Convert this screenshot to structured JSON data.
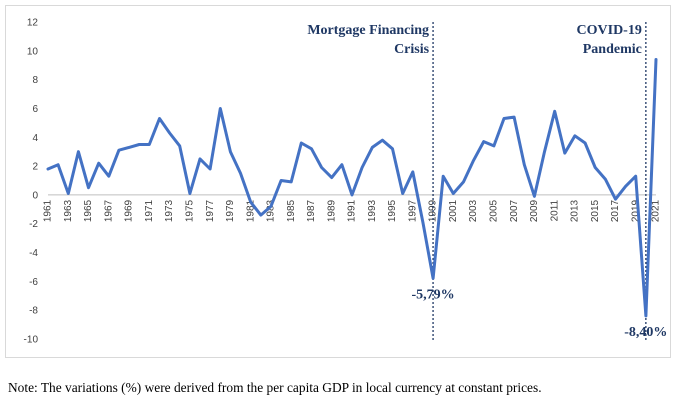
{
  "chart_data": {
    "type": "line",
    "x": [
      1961,
      1962,
      1963,
      1964,
      1965,
      1966,
      1967,
      1968,
      1969,
      1970,
      1971,
      1972,
      1973,
      1974,
      1975,
      1976,
      1977,
      1978,
      1979,
      1980,
      1981,
      1982,
      1983,
      1984,
      1985,
      1986,
      1987,
      1988,
      1989,
      1990,
      1991,
      1992,
      1993,
      1994,
      1995,
      1996,
      1997,
      1998,
      1999,
      2000,
      2001,
      2002,
      2003,
      2004,
      2005,
      2006,
      2007,
      2008,
      2009,
      2010,
      2011,
      2012,
      2013,
      2014,
      2015,
      2016,
      2017,
      2018,
      2019,
      2020,
      2021
    ],
    "values": [
      1.8,
      2.1,
      0.1,
      3.0,
      0.5,
      2.2,
      1.3,
      3.1,
      3.3,
      3.5,
      3.5,
      5.3,
      4.3,
      3.4,
      0.1,
      2.5,
      1.8,
      6.0,
      3.0,
      1.5,
      -0.5,
      -1.4,
      -0.8,
      1.0,
      0.9,
      3.6,
      3.2,
      1.9,
      1.2,
      2.1,
      0.0,
      1.9,
      3.3,
      3.8,
      3.2,
      0.1,
      1.6,
      -1.9,
      -5.79,
      1.3,
      0.1,
      0.9,
      2.4,
      3.7,
      3.4,
      5.3,
      5.4,
      2.1,
      -0.1,
      3.0,
      5.8,
      2.9,
      4.1,
      3.6,
      1.9,
      1.1,
      -0.3,
      0.6,
      1.3,
      -8.4,
      9.4
    ],
    "x_tick_labels": [
      "1961",
      "1963",
      "1965",
      "1967",
      "1969",
      "1971",
      "1973",
      "1975",
      "1977",
      "1979",
      "1981",
      "1983",
      "1985",
      "1987",
      "1989",
      "1991",
      "1993",
      "1995",
      "1997",
      "1999",
      "2001",
      "2003",
      "2005",
      "2007",
      "2009",
      "2011",
      "2013",
      "2015",
      "2017",
      "2019",
      "2021"
    ],
    "y_ticks": [
      "12",
      "10",
      "8",
      "6",
      "4",
      "2",
      "0",
      "-2",
      "-4",
      "-6",
      "-8",
      "-10"
    ],
    "ylim": [
      -10,
      12
    ],
    "line_color": "#4472c4",
    "title": "",
    "xlabel": "",
    "ylabel": "",
    "annotations": [
      {
        "lines": [
          "Mortgage Financing",
          "Crisis"
        ],
        "at_x": 1999
      },
      {
        "lines": [
          "COVID-19",
          "Pandemic"
        ],
        "at_x": 2020
      }
    ],
    "data_labels": [
      {
        "text": "-5,79%",
        "at_x": 1999
      },
      {
        "text": "-8,40%",
        "at_x": 2020
      }
    ],
    "annotation_color": "#1f3864",
    "grid": false,
    "legend": "none"
  },
  "footnote": "Note: The variations (%) were derived from the per capita GDP in local currency at constant prices."
}
